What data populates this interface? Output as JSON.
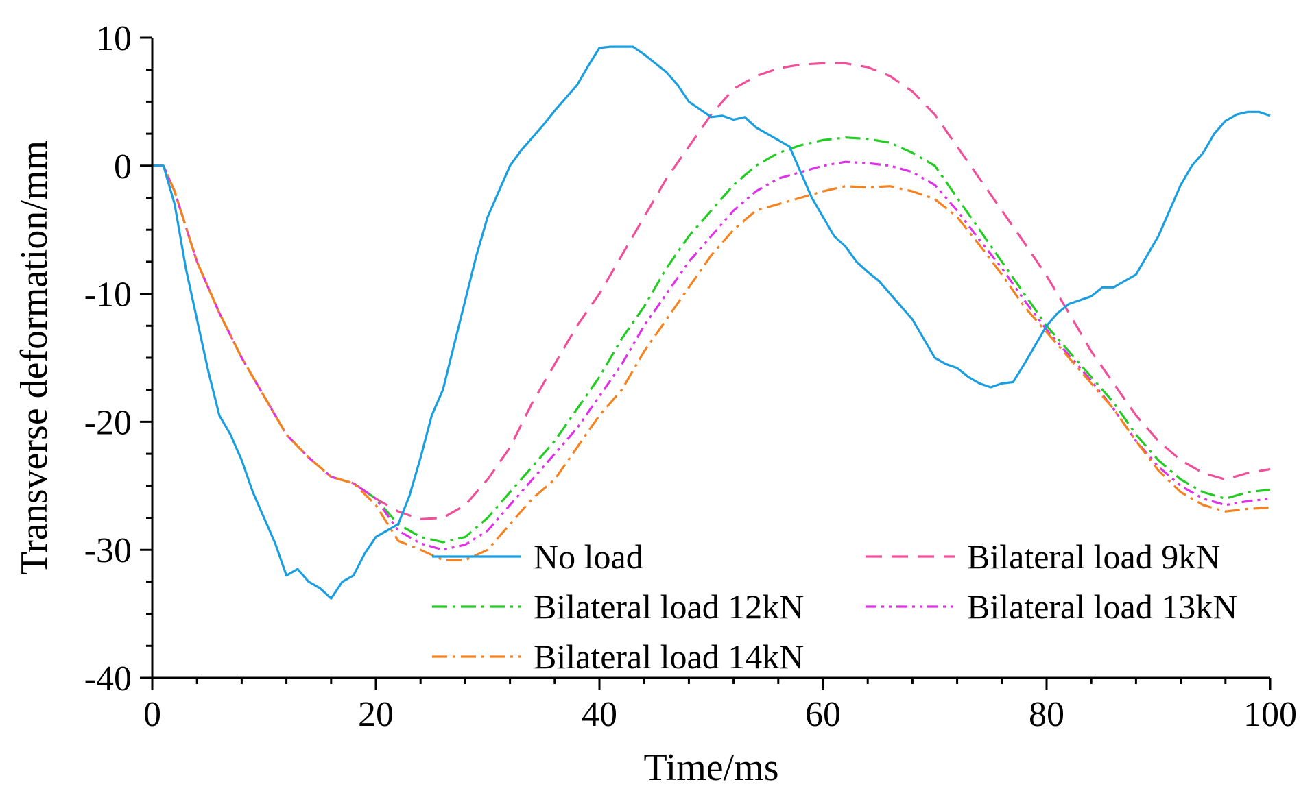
{
  "chart_data": {
    "type": "line",
    "title": "",
    "xlabel": "Time/ms",
    "ylabel": "Transverse deformation/mm",
    "xlim": [
      0,
      100
    ],
    "ylim": [
      -40,
      10
    ],
    "xticks": [
      0,
      20,
      40,
      60,
      80,
      100
    ],
    "yticks": [
      -40,
      -30,
      -20,
      -10,
      0,
      10
    ],
    "xtick_labels": [
      "0",
      "20",
      "40",
      "60",
      "80",
      "100"
    ],
    "ytick_labels": [
      "-40",
      "-30",
      "-20",
      "-10",
      "0",
      "10"
    ],
    "legend_position": "bottom-center",
    "series": [
      {
        "name": "No load",
        "color": "#1a9ee0",
        "dash": "solid",
        "x": [
          0,
          1,
          2,
          3,
          4,
          5,
          6,
          7,
          8,
          9,
          10,
          11,
          12,
          13,
          14,
          15,
          16,
          17,
          18,
          19,
          20,
          21,
          22,
          23,
          24,
          25,
          26,
          27,
          28,
          29,
          30,
          31,
          32,
          33,
          34,
          35,
          36,
          37,
          38,
          39,
          40,
          41,
          42,
          43,
          44,
          45,
          46,
          47,
          48,
          49,
          50,
          51,
          52,
          53,
          54,
          55,
          56,
          57,
          58,
          59,
          60,
          61,
          62,
          63,
          64,
          65,
          66,
          67,
          68,
          69,
          70,
          71,
          72,
          73,
          74,
          75,
          76,
          77,
          78,
          79,
          80,
          81,
          82,
          83,
          84,
          85,
          86,
          87,
          88,
          89,
          90,
          91,
          92,
          93,
          94,
          95,
          96,
          97,
          98,
          99,
          100
        ],
        "y": [
          0,
          0,
          -3,
          -8,
          -12,
          -16,
          -19.5,
          -21,
          -23,
          -25.5,
          -27.5,
          -29.5,
          -32,
          -31.5,
          -32.5,
          -33,
          -33.8,
          -32.5,
          -32,
          -30.3,
          -29,
          -28.5,
          -28,
          -25.8,
          -22.8,
          -19.5,
          -17.5,
          -14,
          -10.5,
          -7,
          -4,
          -2,
          0,
          1.2,
          2.2,
          3.2,
          4.3,
          5.3,
          6.3,
          7.8,
          9.2,
          9.3,
          9.3,
          9.3,
          8.7,
          8,
          7.3,
          6.3,
          5,
          4.4,
          3.8,
          3.9,
          3.6,
          3.8,
          3,
          2.5,
          2,
          1.5,
          -0.5,
          -2.5,
          -4,
          -5.5,
          -6.3,
          -7.5,
          -8.3,
          -9,
          -10,
          -11,
          -12,
          -13.5,
          -15,
          -15.5,
          -15.8,
          -16.5,
          -17,
          -17.3,
          -17,
          -16.9,
          -15.5,
          -14,
          -12.5,
          -11.5,
          -10.8,
          -10.5,
          -10.2,
          -9.5,
          -9.5,
          -9,
          -8.5,
          -7,
          -5.5,
          -3.5,
          -1.5,
          0,
          1,
          2.5,
          3.5,
          4,
          4.2,
          4.2,
          3.9
        ]
      },
      {
        "name": "Bilateral load 9kN",
        "color": "#f0509a",
        "dash": "long",
        "x": [
          0,
          1,
          2,
          4,
          6,
          8,
          10,
          12,
          14,
          16,
          18,
          20,
          22,
          24,
          26,
          28,
          30,
          32,
          34,
          36,
          38,
          40,
          42,
          44,
          46,
          48,
          50,
          52,
          54,
          56,
          58,
          60,
          62,
          64,
          66,
          68,
          70,
          72,
          74,
          76,
          78,
          80,
          82,
          84,
          86,
          88,
          90,
          92,
          94,
          96,
          98,
          100
        ],
        "y": [
          0,
          0,
          -2,
          -7.5,
          -11.5,
          -15,
          -18,
          -21,
          -22.8,
          -24.3,
          -24.8,
          -26,
          -27,
          -27.6,
          -27.5,
          -26.5,
          -24.5,
          -22,
          -18.5,
          -15.5,
          -12.5,
          -10,
          -7,
          -4,
          -1,
          1.5,
          4,
          6,
          7,
          7.6,
          7.9,
          8,
          8,
          7.7,
          7,
          5.8,
          4,
          1.5,
          -1,
          -3.5,
          -6,
          -8.6,
          -11.5,
          -14.5,
          -17,
          -19.5,
          -21.5,
          -23,
          -24,
          -24.5,
          -24,
          -23.7
        ]
      },
      {
        "name": "Bilateral load 12kN",
        "color": "#22cc22",
        "dash": "dashdot",
        "x": [
          0,
          1,
          2,
          4,
          6,
          8,
          10,
          12,
          14,
          16,
          18,
          20,
          22,
          24,
          26,
          28,
          30,
          32,
          34,
          36,
          38,
          40,
          42,
          44,
          46,
          48,
          50,
          52,
          54,
          56,
          58,
          60,
          62,
          64,
          66,
          68,
          70,
          72,
          74,
          76,
          78,
          80,
          82,
          84,
          86,
          88,
          90,
          92,
          94,
          96,
          98,
          100
        ],
        "y": [
          0,
          0,
          -2,
          -7.5,
          -11.5,
          -15,
          -18,
          -21,
          -22.8,
          -24.3,
          -24.8,
          -26,
          -28,
          -29,
          -29.4,
          -29,
          -27.5,
          -25.5,
          -23.5,
          -21.5,
          -19,
          -16.5,
          -13.5,
          -11,
          -8,
          -5.5,
          -3.5,
          -1.5,
          0,
          1,
          1.6,
          2,
          2.2,
          2.1,
          1.8,
          1,
          0,
          -2.5,
          -5,
          -7.5,
          -10,
          -12.5,
          -14.5,
          -16.5,
          -18.5,
          -21,
          -23,
          -24.5,
          -25.5,
          -26,
          -25.5,
          -25.3
        ]
      },
      {
        "name": "Bilateral load 13kN",
        "color": "#e030e8",
        "dash": "dashdotdot",
        "x": [
          0,
          1,
          2,
          4,
          6,
          8,
          10,
          12,
          14,
          16,
          18,
          20,
          22,
          24,
          26,
          28,
          30,
          32,
          34,
          36,
          38,
          40,
          42,
          44,
          46,
          48,
          50,
          52,
          54,
          56,
          58,
          60,
          62,
          64,
          66,
          68,
          70,
          72,
          74,
          76,
          78,
          80,
          82,
          84,
          86,
          88,
          90,
          92,
          94,
          96,
          98,
          100
        ],
        "y": [
          0,
          0,
          -2,
          -7.5,
          -11.5,
          -15,
          -18,
          -21,
          -22.8,
          -24.3,
          -24.8,
          -26,
          -28.5,
          -29.5,
          -30,
          -29.6,
          -28.5,
          -26.5,
          -24.5,
          -22.5,
          -20.5,
          -18,
          -15.5,
          -12.5,
          -10,
          -7.5,
          -5.5,
          -3.5,
          -2,
          -1,
          -0.5,
          0,
          0.3,
          0.2,
          0,
          -0.5,
          -1.5,
          -3.5,
          -5.8,
          -8,
          -10.5,
          -12.8,
          -14.8,
          -16.8,
          -19,
          -21.5,
          -23.5,
          -25,
          -26,
          -26.5,
          -26.2,
          -26
        ]
      },
      {
        "name": "Bilateral load 14kN",
        "color": "#f5821f",
        "dash": "dashdot",
        "x": [
          0,
          1,
          2,
          4,
          6,
          8,
          10,
          12,
          14,
          16,
          18,
          20,
          22,
          24,
          26,
          28,
          30,
          32,
          34,
          36,
          38,
          40,
          42,
          44,
          46,
          48,
          50,
          52,
          54,
          56,
          58,
          60,
          62,
          64,
          66,
          68,
          70,
          72,
          74,
          76,
          78,
          80,
          82,
          84,
          86,
          88,
          90,
          92,
          94,
          96,
          98,
          100
        ],
        "y": [
          0,
          0,
          -2,
          -7.5,
          -11.5,
          -15,
          -18,
          -21,
          -22.8,
          -24.3,
          -24.8,
          -26.5,
          -29.3,
          -30,
          -30.8,
          -30.8,
          -30,
          -28,
          -26,
          -24.5,
          -22,
          -19.5,
          -17.5,
          -14.5,
          -12,
          -9.5,
          -7,
          -5,
          -3.5,
          -3,
          -2.5,
          -2,
          -1.6,
          -1.7,
          -1.6,
          -2,
          -2.6,
          -4,
          -6.2,
          -8.5,
          -11,
          -13,
          -15,
          -17,
          -19,
          -21.5,
          -23.8,
          -25.5,
          -26.5,
          -27,
          -26.8,
          -26.7
        ]
      }
    ]
  }
}
